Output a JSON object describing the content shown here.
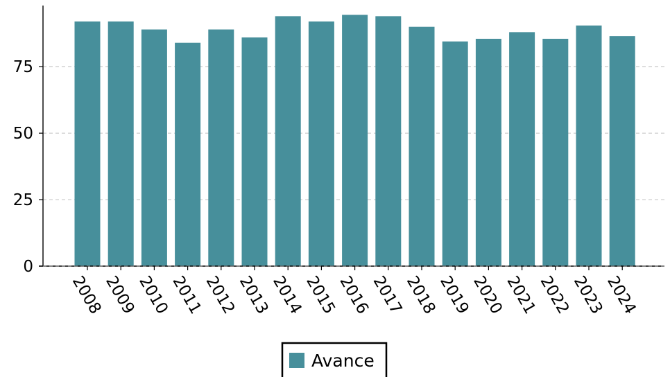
{
  "chart_data": {
    "type": "bar",
    "title": "",
    "xlabel": "",
    "ylabel": "",
    "categories": [
      "2008",
      "2009",
      "2010",
      "2011",
      "2012",
      "2013",
      "2014",
      "2015",
      "2016",
      "2017",
      "2018",
      "2019",
      "2020",
      "2021",
      "2022",
      "2023",
      "2024"
    ],
    "series": [
      {
        "name": "Avance",
        "color": "#478f9b",
        "values": [
          92,
          92,
          89,
          84,
          89,
          86,
          94,
          92,
          94.5,
          94,
          90,
          84.5,
          85.5,
          88,
          85.5,
          90.5,
          86.5
        ]
      }
    ],
    "ylim": [
      0,
      98
    ],
    "yticks": [
      0,
      25,
      50,
      75
    ],
    "grid": "horizontal dashed",
    "legend": "bottom-center",
    "x_tick_rotation_deg": 60
  }
}
